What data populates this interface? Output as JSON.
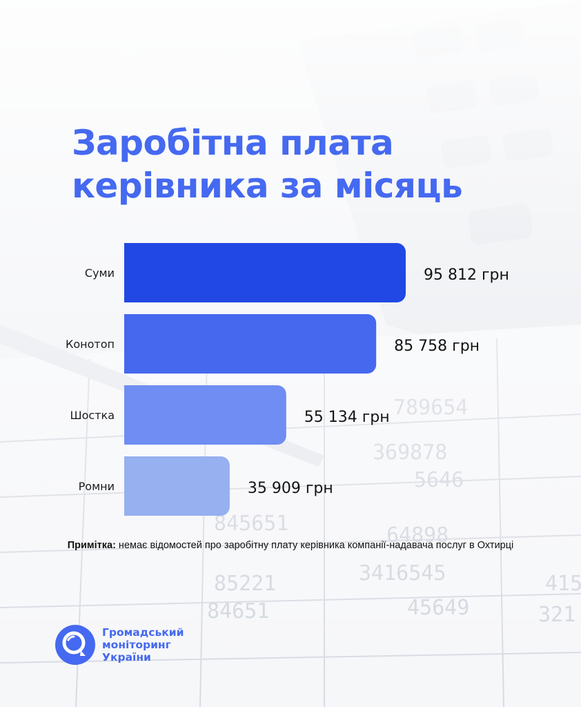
{
  "title": {
    "line1": "Заробітна плата",
    "line2": "керівника за місяць"
  },
  "chart_data": {
    "type": "bar",
    "orientation": "horizontal",
    "categories": [
      "Суми",
      "Конотоп",
      "Шостка",
      "Ромни"
    ],
    "values": [
      95812,
      85758,
      55134,
      35909
    ],
    "value_labels": [
      "95 812 грн",
      "85 758 грн",
      "55 134 грн",
      "35 909 грн"
    ],
    "bar_colors": [
      "#2148e4",
      "#4568ee",
      "#6f8df2",
      "#96b0f0"
    ],
    "xlim": [
      0,
      95812
    ],
    "grid": false,
    "legend": "none"
  },
  "note": {
    "label": "Примітка:",
    "text": " немає відомостей про заробітну плату керівника компанії-надавача послуг в Охтирці"
  },
  "brand": {
    "line1": "Громадський",
    "line2": "моніторинг",
    "line3": "України",
    "color": "#4569f0"
  }
}
